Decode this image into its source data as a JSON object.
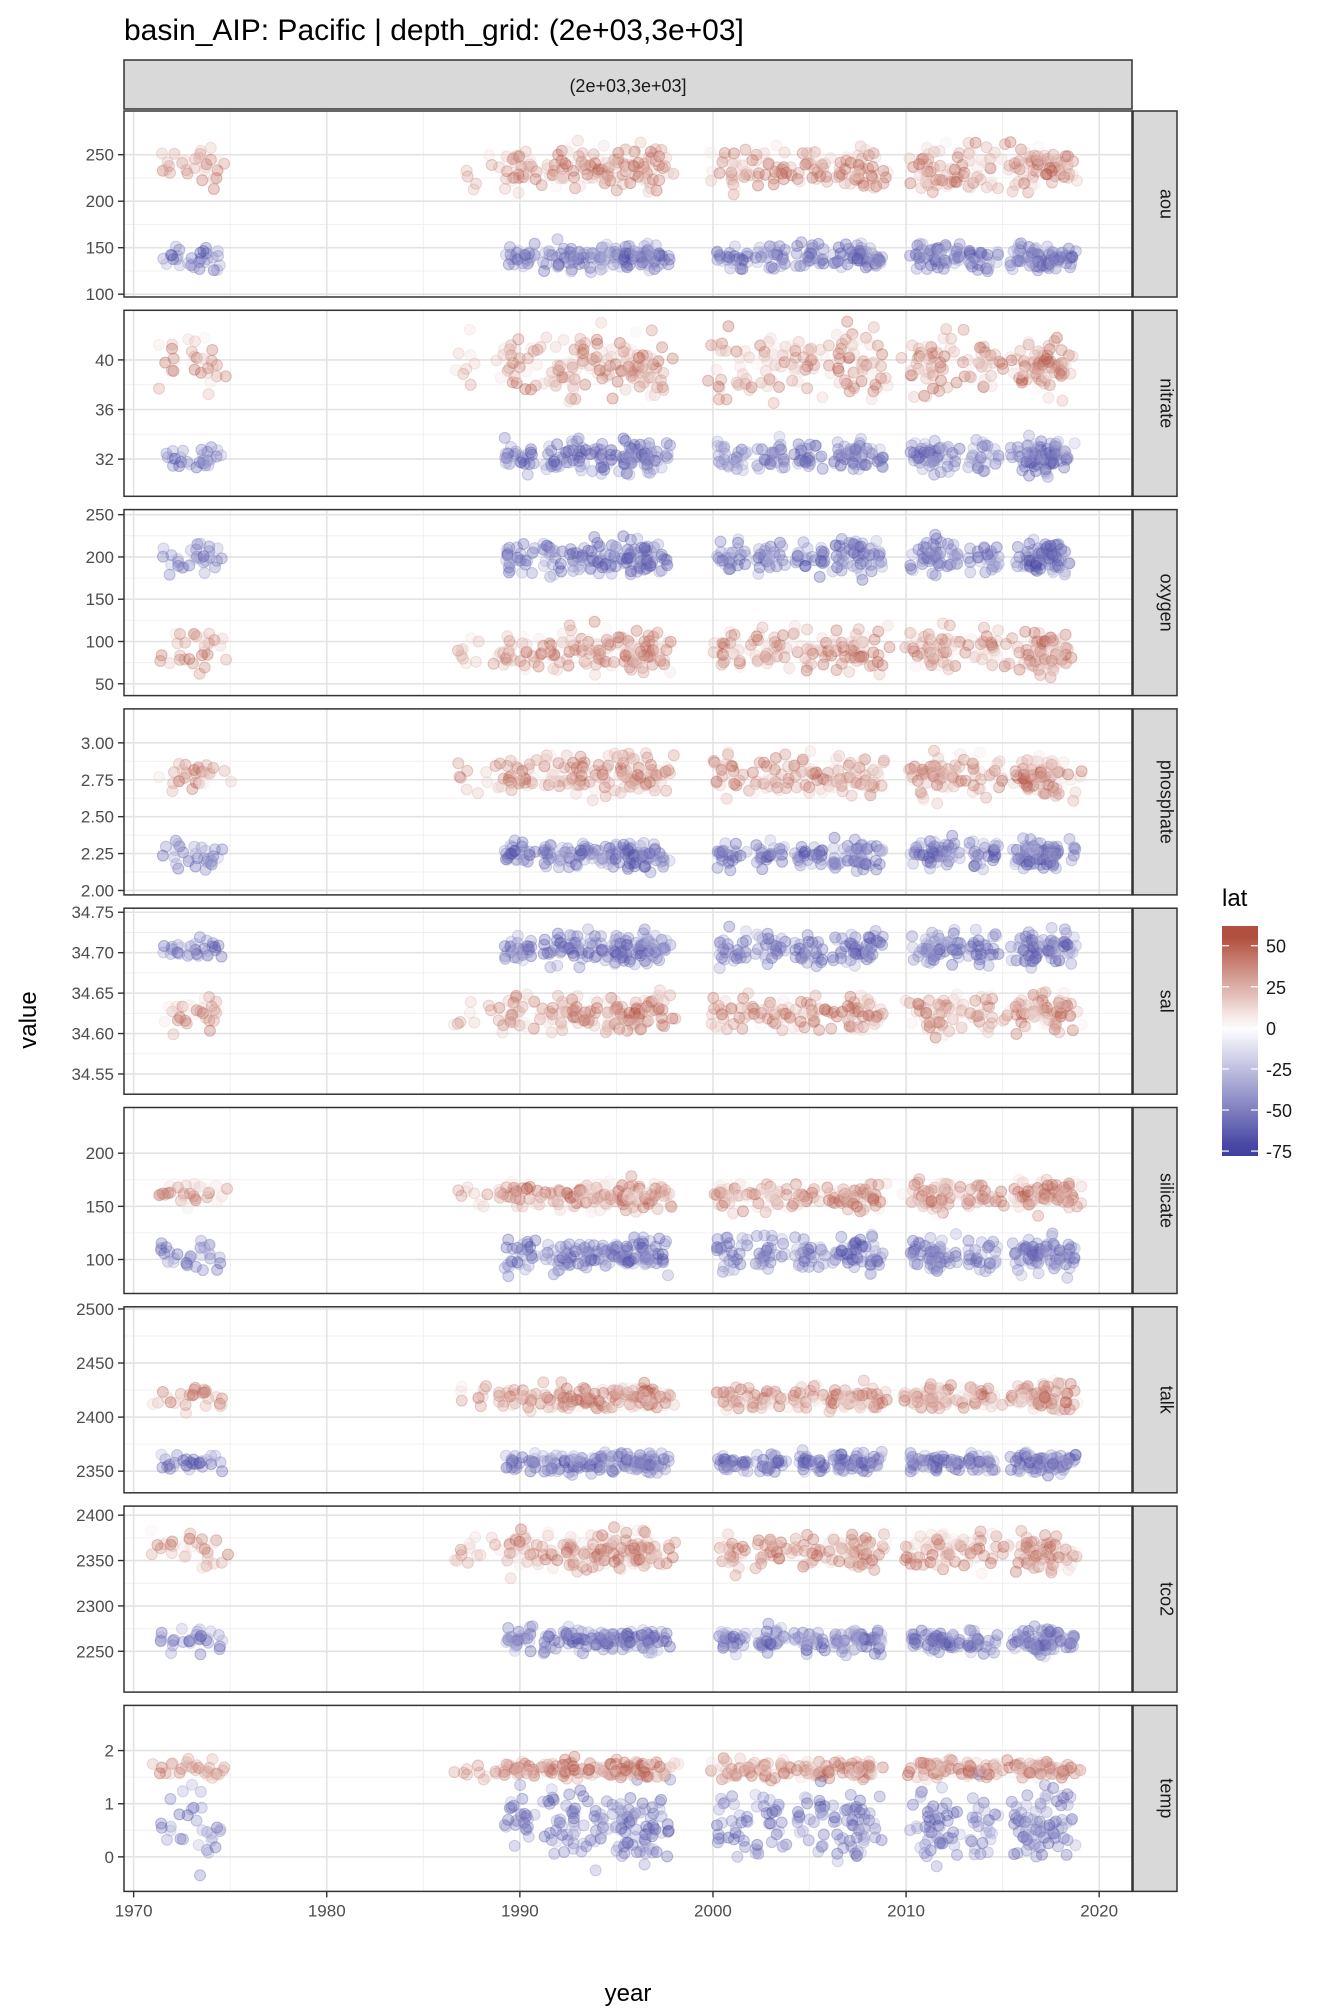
{
  "chart_data": {
    "type": "scatter",
    "title": "basin_AIP: Pacific | depth_grid: (2e+03,3e+03]",
    "facet_column": "(2e+03,3e+03]",
    "xlabel": "year",
    "ylabel": "value",
    "x_ticks": [
      1970,
      1980,
      1990,
      2000,
      2010,
      2020
    ],
    "xlim": [
      1969.5,
      2021.7
    ],
    "grid": true,
    "legend": {
      "title": "lat",
      "position": "right",
      "ticks": [
        50,
        25,
        0,
        -25,
        -50,
        -75
      ],
      "range": [
        -78,
        62
      ],
      "colors": {
        "low": "#3f3fa0",
        "mid": "#ffffff",
        "high": "#b2503f"
      }
    },
    "panels": [
      {
        "name": "aou",
        "ylim": [
          97,
          297
        ],
        "y_ticks": [
          100,
          150,
          200,
          250
        ],
        "north_mean": 235,
        "north_spread": 20,
        "south_mean": 140,
        "south_spread": 12
      },
      {
        "name": "nitrate",
        "ylim": [
          29.0,
          44.0
        ],
        "y_ticks": [
          32,
          36,
          40
        ],
        "north_mean": 39.5,
        "north_spread": 2.2,
        "south_mean": 32.2,
        "south_spread": 1.1
      },
      {
        "name": "oxygen",
        "ylim": [
          36,
          256
        ],
        "y_ticks": [
          50,
          100,
          150,
          200,
          250
        ],
        "north_mean": 90,
        "north_spread": 22,
        "south_mean": 200,
        "south_spread": 18
      },
      {
        "name": "phosphate",
        "ylim": [
          1.97,
          3.23
        ],
        "y_ticks": [
          2.0,
          2.25,
          2.5,
          2.75,
          3.0
        ],
        "north_mean": 2.78,
        "north_spread": 0.12,
        "south_mean": 2.24,
        "south_spread": 0.08
      },
      {
        "name": "sal",
        "ylim": [
          34.525,
          34.755
        ],
        "y_ticks": [
          34.55,
          34.6,
          34.65,
          34.7,
          34.75
        ],
        "north_mean": 34.625,
        "north_spread": 0.02,
        "south_mean": 34.705,
        "south_spread": 0.018
      },
      {
        "name": "silicate",
        "ylim": [
          68,
          243
        ],
        "y_ticks": [
          100,
          150,
          200
        ],
        "north_mean": 160,
        "north_spread": 12,
        "south_mean": 105,
        "south_spread": 14
      },
      {
        "name": "talk",
        "ylim": [
          2330,
          2502
        ],
        "y_ticks": [
          2350,
          2400,
          2450,
          2500
        ],
        "north_mean": 2418,
        "north_spread": 10,
        "south_mean": 2358,
        "south_spread": 8
      },
      {
        "name": "tco2",
        "ylim": [
          2205,
          2410
        ],
        "y_ticks": [
          2250,
          2300,
          2350,
          2400
        ],
        "north_mean": 2360,
        "north_spread": 18,
        "south_mean": 2262,
        "south_spread": 12
      },
      {
        "name": "temp",
        "ylim": [
          -0.65,
          2.85
        ],
        "y_ticks": [
          0,
          1,
          2
        ],
        "north_mean": 1.65,
        "north_spread": 0.15,
        "south_mean": 0.6,
        "south_spread": 0.6
      }
    ],
    "cruise_years": [
      1972,
      1973.3,
      1974,
      1990,
      1992,
      1993.5,
      1995,
      1996,
      1997,
      2001,
      2003,
      2005,
      2007,
      2008,
      2011,
      2012,
      2014,
      2016.2,
      2017,
      2018
    ]
  }
}
